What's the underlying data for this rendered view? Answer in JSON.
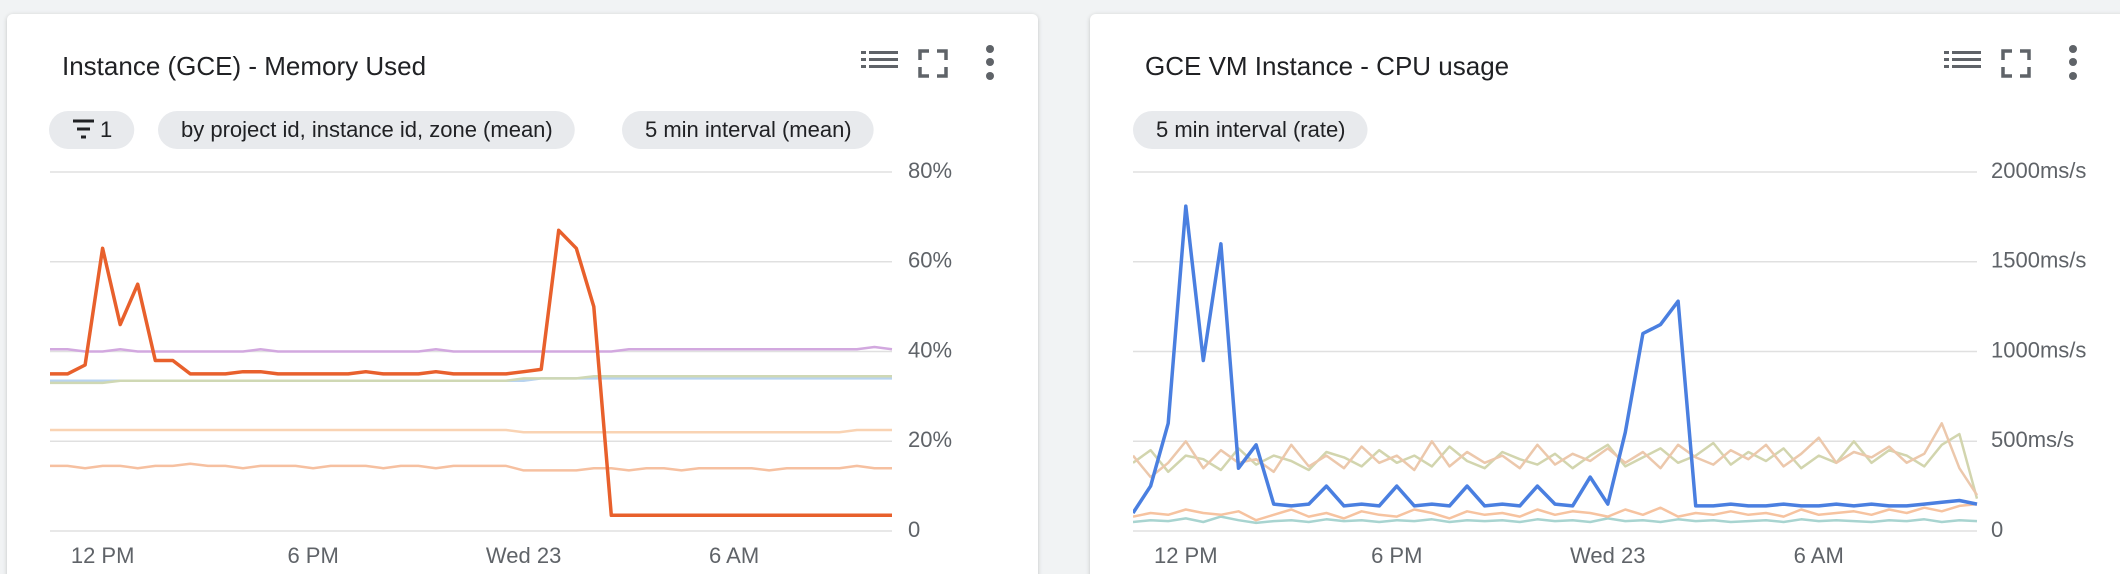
{
  "chart_data": [
    {
      "type": "line",
      "title": "Instance (GCE) - Memory Used",
      "chips": [
        "1",
        "by project id, instance id, zone (mean)",
        "5 min interval (mean)"
      ],
      "categories": [
        null,
        null,
        null,
        "12 PM",
        null,
        null,
        null,
        null,
        null,
        null,
        null,
        null,
        null,
        null,
        null,
        "6 PM",
        null,
        null,
        null,
        null,
        null,
        null,
        null,
        null,
        null,
        null,
        null,
        "Wed 23",
        null,
        null,
        null,
        null,
        null,
        null,
        null,
        null,
        null,
        null,
        null,
        "6 AM",
        null,
        null,
        null,
        null,
        null,
        null,
        null,
        null,
        null
      ],
      "ylim": [
        0,
        80
      ],
      "yticks": [
        0,
        {
          "value": 20,
          "label": "20%"
        },
        {
          "value": 40,
          "label": "40%"
        },
        {
          "value": 60,
          "label": "60%"
        },
        {
          "value": 80,
          "label": "80%"
        }
      ],
      "grid": true,
      "series": [
        {
          "color": "#f6c0a0",
          "values": [
            14.5,
            14.5,
            14,
            14.5,
            14.5,
            14,
            14.5,
            14.5,
            15,
            14.5,
            14.5,
            14,
            14.5,
            14.5,
            14.5,
            14,
            14.5,
            14.5,
            14.5,
            14,
            14.5,
            14.5,
            14,
            14.5,
            14.5,
            14.5,
            14.5,
            13.5,
            13.5,
            13.5,
            13.5,
            14,
            14,
            13.5,
            14,
            14,
            13.5,
            14,
            14,
            14,
            14,
            13.5,
            14,
            14,
            14,
            14,
            14.5,
            14,
            14
          ]
        },
        {
          "color": "#f9d3b3",
          "values": [
            22.5,
            22.5,
            22.5,
            22.5,
            22.5,
            22.5,
            22.5,
            22.5,
            22.5,
            22.5,
            22.5,
            22.5,
            22.5,
            22.5,
            22.5,
            22.5,
            22.5,
            22.5,
            22.5,
            22.5,
            22.5,
            22.5,
            22.5,
            22.5,
            22.5,
            22.5,
            22.5,
            22,
            22,
            22,
            22,
            22,
            22,
            22,
            22,
            22,
            22,
            22,
            22,
            22,
            22,
            22,
            22,
            22,
            22,
            22,
            22.5,
            22.5,
            22.5
          ]
        },
        {
          "color": "#b8d3ef",
          "values": [
            33.5,
            33.5,
            33.5,
            33.5,
            33.5,
            33.5,
            33.5,
            33.5,
            33.5,
            33.5,
            33.5,
            33.5,
            33.5,
            33.5,
            33.5,
            33.5,
            33.5,
            33.5,
            33.5,
            33.5,
            33.5,
            33.5,
            33.5,
            33.5,
            33.5,
            33.5,
            33.5,
            33.5,
            34,
            34,
            34,
            34,
            34,
            34,
            34,
            34,
            34,
            34,
            34,
            34,
            34,
            34,
            34,
            34,
            34,
            34,
            34,
            34,
            34
          ]
        },
        {
          "color": "#cfd8b4",
          "values": [
            33,
            33,
            33,
            33,
            33.5,
            33.5,
            33.5,
            33.5,
            33.5,
            33.5,
            33.5,
            33.5,
            33.5,
            33.5,
            33.5,
            33.5,
            33.5,
            33.5,
            33.5,
            33.5,
            33.5,
            33.5,
            33.5,
            33.5,
            33.5,
            33.5,
            33.5,
            34,
            34,
            34,
            34,
            34.5,
            34.5,
            34.5,
            34.5,
            34.5,
            34.5,
            34.5,
            34.5,
            34.5,
            34.5,
            34.5,
            34.5,
            34.5,
            34.5,
            34.5,
            34.5,
            34.5,
            34.5
          ]
        },
        {
          "color": "#d2a8df",
          "values": [
            40.5,
            40.5,
            40,
            40,
            40.5,
            40,
            40,
            40,
            40,
            40,
            40,
            40,
            40.5,
            40,
            40,
            40,
            40,
            40,
            40,
            40,
            40,
            40,
            40.5,
            40,
            40,
            40,
            40,
            40,
            40,
            40,
            40,
            40,
            40,
            40.5,
            40.5,
            40.5,
            40.5,
            40.5,
            40.5,
            40.5,
            40.5,
            40.5,
            40.5,
            40.5,
            40.5,
            40.5,
            40.5,
            41,
            40.5
          ]
        },
        {
          "color": "#e8602c",
          "values": [
            35,
            35,
            37,
            63,
            46,
            55,
            38,
            38,
            35,
            35,
            35,
            35.5,
            35.5,
            35,
            35,
            35,
            35,
            35,
            35.5,
            35,
            35,
            35,
            35.5,
            35,
            35,
            35,
            35,
            35.5,
            36,
            67,
            63,
            50,
            3.5,
            3.5,
            3.5,
            3.5,
            3.5,
            3.5,
            3.5,
            3.5,
            3.5,
            3.5,
            3.5,
            3.5,
            3.5,
            3.5,
            3.5,
            3.5,
            3.5
          ]
        }
      ]
    },
    {
      "type": "line",
      "title": "GCE VM Instance - CPU usage",
      "chips": [
        "5 min interval (rate)"
      ],
      "categories": [
        null,
        null,
        null,
        "12 PM",
        null,
        null,
        null,
        null,
        null,
        null,
        null,
        null,
        null,
        null,
        null,
        "6 PM",
        null,
        null,
        null,
        null,
        null,
        null,
        null,
        null,
        null,
        null,
        null,
        "Wed 23",
        null,
        null,
        null,
        null,
        null,
        null,
        null,
        null,
        null,
        null,
        null,
        "6 AM",
        null,
        null,
        null,
        null,
        null,
        null,
        null,
        null,
        null
      ],
      "ylim": [
        0,
        2000
      ],
      "yticks": [
        0,
        {
          "value": 500,
          "label": "500ms/s"
        },
        {
          "value": 1000,
          "label": "1000ms/s"
        },
        {
          "value": 1500,
          "label": "1500ms/s"
        },
        {
          "value": 2000,
          "label": "2000ms/s"
        }
      ],
      "grid": true,
      "series": [
        {
          "color": "#a8d4d0",
          "values": [
            50,
            60,
            55,
            70,
            50,
            80,
            60,
            45,
            55,
            60,
            50,
            65,
            55,
            60,
            50,
            60,
            55,
            65,
            50,
            60,
            55,
            60,
            50,
            65,
            55,
            60,
            50,
            70,
            55,
            60,
            50,
            65,
            55,
            60,
            50,
            55,
            60,
            50,
            65,
            55,
            60,
            55,
            50,
            60,
            55,
            65,
            50,
            60,
            55
          ]
        },
        {
          "color": "#f6c3a0",
          "values": [
            80,
            100,
            90,
            120,
            100,
            90,
            110,
            60,
            90,
            120,
            80,
            100,
            70,
            110,
            90,
            80,
            120,
            100,
            70,
            110,
            90,
            100,
            80,
            120,
            90,
            110,
            100,
            80,
            120,
            90,
            130,
            80,
            100,
            90,
            110,
            90,
            100,
            80,
            120,
            90,
            100,
            110,
            90,
            120,
            100,
            130,
            110,
            140,
            150
          ]
        },
        {
          "color": "#d2d5ae",
          "values": [
            380,
            450,
            330,
            420,
            400,
            340,
            460,
            370,
            420,
            390,
            340,
            440,
            410,
            360,
            450,
            380,
            420,
            360,
            470,
            390,
            350,
            440,
            400,
            370,
            430,
            350,
            420,
            480,
            360,
            410,
            460,
            380,
            420,
            490,
            370,
            440,
            390,
            460,
            350,
            420,
            380,
            500,
            380,
            450,
            420,
            360,
            480,
            540,
            180
          ]
        },
        {
          "color": "#ecc8ac",
          "values": [
            420,
            300,
            380,
            500,
            350,
            450,
            380,
            400,
            330,
            480,
            360,
            420,
            350,
            470,
            380,
            420,
            340,
            500,
            360,
            440,
            380,
            420,
            350,
            480,
            370,
            430,
            390,
            460,
            380,
            440,
            350,
            480,
            410,
            370,
            450,
            400,
            480,
            360,
            430,
            520,
            380,
            440,
            410,
            470,
            380,
            430,
            600,
            350,
            200
          ]
        },
        {
          "color": "#4a7fe0",
          "values": [
            100,
            250,
            600,
            1810,
            950,
            1600,
            350,
            480,
            150,
            140,
            150,
            250,
            140,
            150,
            140,
            250,
            140,
            150,
            140,
            250,
            140,
            150,
            140,
            250,
            150,
            140,
            300,
            150,
            550,
            1100,
            1150,
            1280,
            140,
            140,
            150,
            140,
            140,
            150,
            140,
            140,
            150,
            140,
            150,
            140,
            140,
            150,
            160,
            170,
            150
          ]
        }
      ]
    }
  ]
}
